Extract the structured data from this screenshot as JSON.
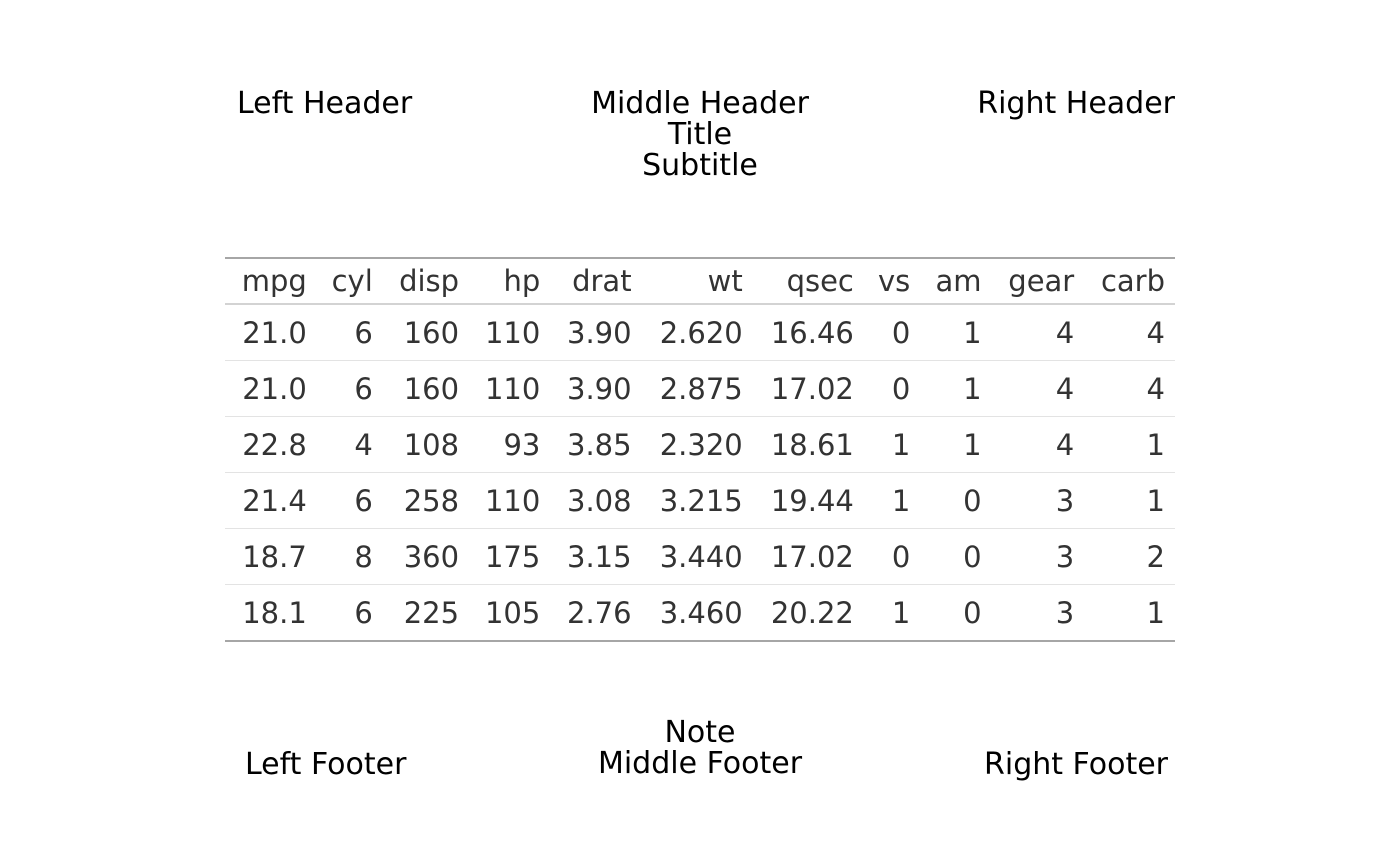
{
  "header": {
    "left": "Left Header",
    "middle": "Middle Header",
    "title": "Title",
    "subtitle": "Subtitle",
    "right": "Right Header"
  },
  "table": {
    "columns": [
      "mpg",
      "cyl",
      "disp",
      "hp",
      "drat",
      "wt",
      "qsec",
      "vs",
      "am",
      "gear",
      "carb"
    ],
    "rows": [
      [
        "21.0",
        "6",
        "160",
        "110",
        "3.90",
        "2.620",
        "16.46",
        "0",
        "1",
        "4",
        "4"
      ],
      [
        "21.0",
        "6",
        "160",
        "110",
        "3.90",
        "2.875",
        "17.02",
        "0",
        "1",
        "4",
        "4"
      ],
      [
        "22.8",
        "4",
        "108",
        "93",
        "3.85",
        "2.320",
        "18.61",
        "1",
        "1",
        "4",
        "1"
      ],
      [
        "21.4",
        "6",
        "258",
        "110",
        "3.08",
        "3.215",
        "19.44",
        "1",
        "0",
        "3",
        "1"
      ],
      [
        "18.7",
        "8",
        "360",
        "175",
        "3.15",
        "3.440",
        "17.02",
        "0",
        "0",
        "3",
        "2"
      ],
      [
        "18.1",
        "6",
        "225",
        "105",
        "2.76",
        "3.460",
        "20.22",
        "1",
        "0",
        "3",
        "1"
      ]
    ]
  },
  "footer": {
    "left": "Left Footer",
    "note": "Note",
    "middle": "Middle Footer",
    "right": "Right Footer"
  }
}
